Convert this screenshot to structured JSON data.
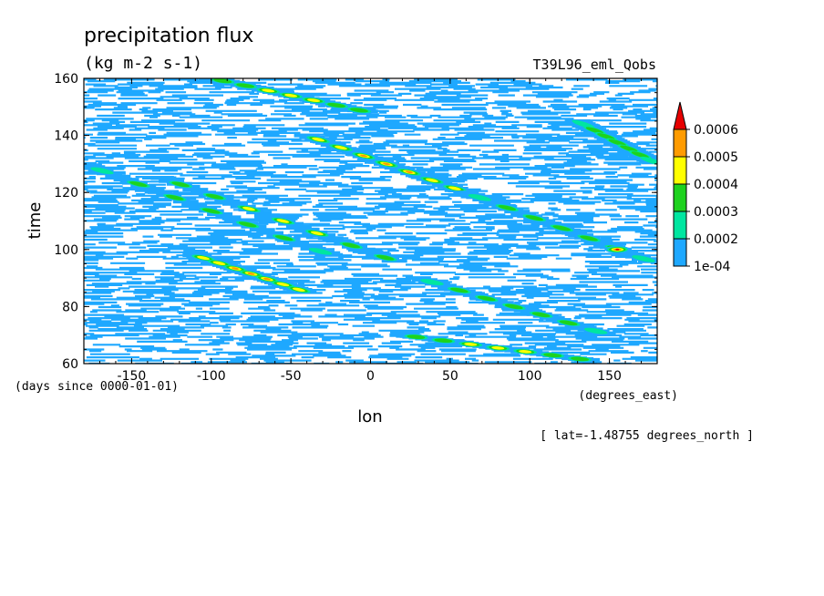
{
  "chart_data": {
    "type": "heatmap",
    "title": "precipitation flux",
    "units": "(kg m-2 s-1)",
    "run_name": "T39L96_eml_Qobs",
    "xlabel": "lon",
    "ylabel": "time",
    "x_units": "(degrees_east)",
    "y_units": "(days since 0000-01-01)",
    "xlim": [
      -180,
      180
    ],
    "ylim": [
      60,
      160
    ],
    "x_ticks": [
      -150,
      -100,
      -50,
      0,
      50,
      100,
      150
    ],
    "x_tick_labels": [
      "-150",
      "-100",
      "-50",
      "0",
      "50",
      "100",
      "150"
    ],
    "y_ticks": [
      60,
      80,
      100,
      120,
      140,
      160
    ],
    "y_tick_labels": [
      "60",
      "80",
      "100",
      "120",
      "140",
      "160"
    ],
    "subset_note": "[ lat=-1.48755 degrees_north ]",
    "colorbar": {
      "levels": [
        0.0001,
        0.0002,
        0.0003,
        0.0004,
        0.0005,
        0.0006
      ],
      "labels": [
        "1e-04",
        "0.0002",
        "0.0003",
        "0.0004",
        "0.0005",
        "0.0006"
      ],
      "colors": [
        "#1ea8ff",
        "#00e6a0",
        "#1ed21e",
        "#ffff00",
        "#ff9b00",
        "#e60000"
      ],
      "extend": "max"
    },
    "features": [
      {
        "name": "eastward-propagating band",
        "lon_start": -180,
        "time_start": 130,
        "lon_end": -20,
        "time_end": 97,
        "peak_level": 0.0003
      },
      {
        "name": "eastward-propagating band",
        "lon_start": -130,
        "time_start": 125,
        "lon_end": 20,
        "time_end": 95,
        "peak_level": 0.0004
      },
      {
        "name": "eastward-propagating band",
        "lon_start": -40,
        "time_start": 140,
        "lon_end": 60,
        "time_end": 120,
        "peak_level": 0.0005
      },
      {
        "name": "eastward-propagating band",
        "lon_start": -110,
        "time_start": 98,
        "lon_end": -40,
        "time_end": 85,
        "peak_level": 0.0005
      },
      {
        "name": "eastward-propagating band",
        "lon_start": 30,
        "time_start": 90,
        "lon_end": 150,
        "time_end": 70,
        "peak_level": 0.0003
      },
      {
        "name": "eastward-propagating band",
        "lon_start": 20,
        "time_start": 70,
        "lon_end": 140,
        "time_end": 61,
        "peak_level": 0.0004
      },
      {
        "name": "eastward-propagating band",
        "lon_start": 60,
        "time_start": 120,
        "lon_end": 180,
        "time_end": 95,
        "peak_level": 0.0003
      },
      {
        "name": "eastward-propagating band",
        "lon_start": -100,
        "time_start": 160,
        "lon_end": 0,
        "time_end": 148,
        "peak_level": 0.0004
      },
      {
        "name": "eastward-propagating band",
        "lon_start": 130,
        "time_start": 145,
        "lon_end": 180,
        "time_end": 130,
        "peak_level": 0.0003
      },
      {
        "name": "local maximum",
        "lon": 155,
        "time": 100,
        "peak_level": 0.0006
      }
    ]
  }
}
